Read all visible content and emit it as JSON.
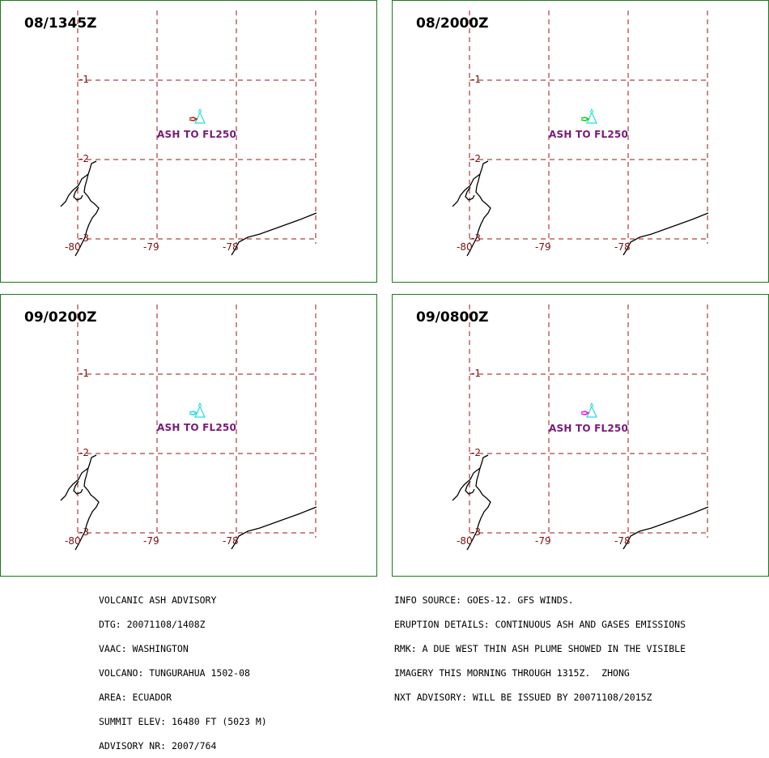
{
  "panels": [
    {
      "time": "08/1345Z",
      "ash_label": "ASH TO FL250",
      "plume_color": "#b03018"
    },
    {
      "time": "08/2000Z",
      "ash_label": "ASH TO FL250",
      "plume_color": "#22cc22"
    },
    {
      "time": "09/0200Z",
      "ash_label": "ASH TO FL250",
      "plume_color": "#22dddd"
    },
    {
      "time": "09/0800Z",
      "ash_label": "ASH TO FL250",
      "plume_color": "#dd22dd"
    }
  ],
  "lat_labels": [
    "-1",
    "-2",
    "-3"
  ],
  "lon_labels": [
    "-80",
    "-79",
    "-78"
  ],
  "volcano_color": "#22dddd",
  "grid_color": "#a01010",
  "advisory_left": [
    "VOLCANIC ASH ADVISORY",
    "DTG: 20071108/1408Z",
    "VAAC: WASHINGTON",
    "VOLCANO: TUNGURAHUA 1502-08",
    "AREA: ECUADOR",
    "SUMMIT ELEV: 16480 FT (5023 M)",
    "ADVISORY NR: 2007/764"
  ],
  "advisory_right": [
    "INFO SOURCE: GOES-12. GFS WINDS.",
    "ERUPTION DETAILS: CONTINUOUS ASH AND GASES EMISSIONS",
    "RMK: A DUE WEST THIN ASH PLUME SHOWED IN THE VISIBLE",
    "IMAGERY THIS MORNING THROUGH 1315Z.  ZHONG",
    "NXT ADVISORY: WILL BE ISSUED BY 20071108/2015Z"
  ]
}
